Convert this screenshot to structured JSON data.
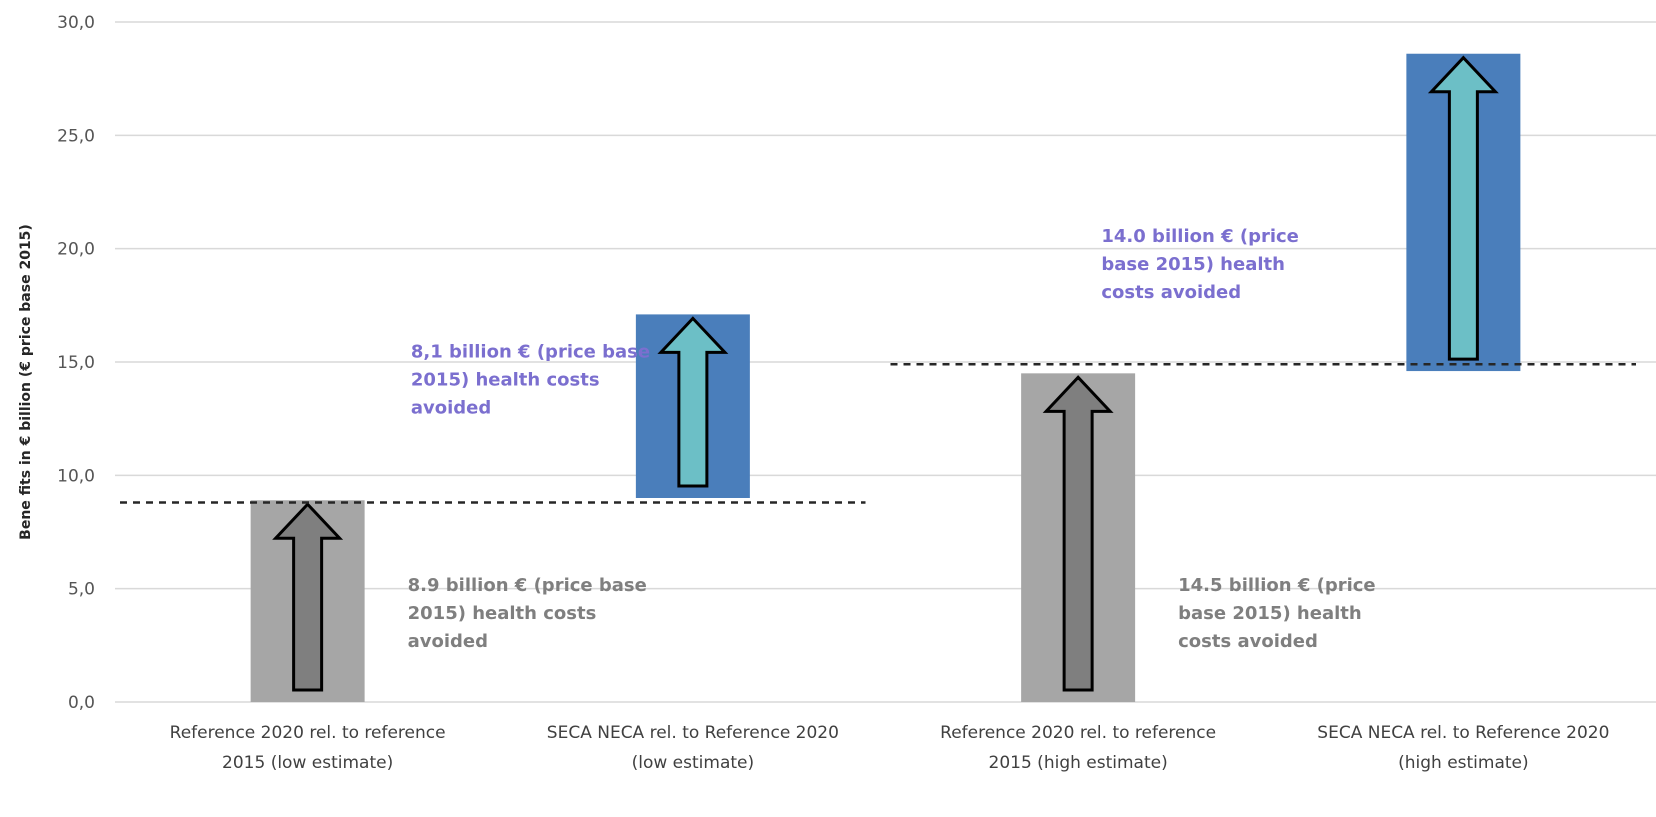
{
  "chart_data": {
    "type": "bar",
    "ylabel": "Bene fits in € billion (€ price base 2015)",
    "ylim": [
      0,
      30
    ],
    "yticks": [
      "0,0",
      "5,0",
      "10,0",
      "15,0",
      "20,0",
      "25,0",
      "30,0"
    ],
    "grid": true,
    "categories": [
      [
        "Reference 2020 rel. to reference",
        "2015 (low estimate)"
      ],
      [
        "SECA NECA rel. to Reference 2020",
        "(low estimate)"
      ],
      [
        "Reference 2020 rel. to reference",
        "2015 (high estimate)"
      ],
      [
        "SECA NECA rel. to Reference 2020",
        "(high estimate)"
      ]
    ],
    "bars": [
      {
        "base": 0,
        "value": 8.9,
        "color": "#a6a6a6",
        "arrow_color": "#7f7f7f"
      },
      {
        "base": 9.0,
        "value": 8.1,
        "color": "#4a7ebb",
        "arrow_color": "#6cbfc6"
      },
      {
        "base": 0,
        "value": 14.5,
        "color": "#a6a6a6",
        "arrow_color": "#7f7f7f"
      },
      {
        "base": 14.6,
        "value": 14.0,
        "color": "#4a7ebb",
        "arrow_color": "#6cbfc6"
      }
    ],
    "reference_lines": [
      {
        "y": 8.8,
        "from_category": 0,
        "to_category": 1
      },
      {
        "y": 14.9,
        "from_category": 2,
        "to_category": 3
      }
    ],
    "annotations": [
      {
        "category": 0,
        "y": 4.9,
        "color": "#7f7f7f",
        "lines": [
          "8.9 billion € (price base",
          "2015) health costs",
          "avoided"
        ]
      },
      {
        "category": 1,
        "y": 15.2,
        "color": "#7b6fcf",
        "lines": [
          "8,1 billion € (price base",
          "2015) health costs",
          "avoided"
        ]
      },
      {
        "category": 2,
        "y": 4.9,
        "color": "#7f7f7f",
        "lines": [
          "14.5 billion € (price",
          "base 2015) health",
          "costs avoided"
        ]
      },
      {
        "category": 3,
        "y": 20.3,
        "color": "#7b6fcf",
        "lines": [
          "14.0 billion € (price",
          "base 2015) health",
          "costs avoided"
        ]
      }
    ]
  }
}
